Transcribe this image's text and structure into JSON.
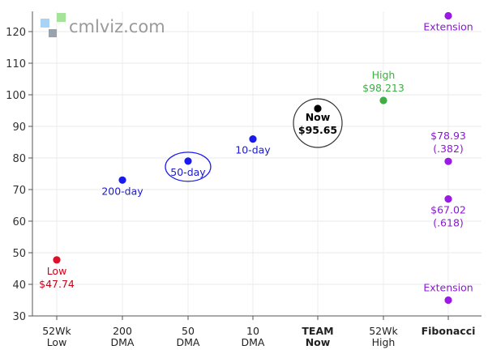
{
  "logo": {
    "text": "cmlviz.com"
  },
  "chart_data": {
    "type": "scatter",
    "ylim": [
      30,
      125
    ],
    "yticks": [
      30,
      40,
      50,
      60,
      70,
      80,
      90,
      100,
      110,
      120
    ],
    "categories": [
      {
        "line1": "52Wk",
        "line2": "Low",
        "bold": false
      },
      {
        "line1": "200",
        "line2": "DMA",
        "bold": false
      },
      {
        "line1": "50",
        "line2": "DMA",
        "bold": false
      },
      {
        "line1": "10",
        "line2": "DMA",
        "bold": false
      },
      {
        "line1": "TEAM",
        "line2": "Now",
        "bold": true
      },
      {
        "line1": "52Wk",
        "line2": "High",
        "bold": false
      },
      {
        "line1": "Fibonacci",
        "line2": "",
        "bold": true
      }
    ],
    "points": [
      {
        "cat": 0,
        "y": 47.74,
        "color": "#e0102a",
        "text_color": "#d0021b",
        "labels": [
          "Low",
          "$47.74"
        ],
        "label_pos": "below"
      },
      {
        "cat": 1,
        "y": 73,
        "color": "#1a1aee",
        "text_color": "#1a1acc",
        "labels": [
          "200-day"
        ],
        "label_pos": "below"
      },
      {
        "cat": 2,
        "y": 79,
        "color": "#1a1aee",
        "text_color": "#1a1acc",
        "labels": [
          "50-day"
        ],
        "label_pos": "below",
        "ring": "#1a1aee"
      },
      {
        "cat": 3,
        "y": 86,
        "color": "#1a1aee",
        "text_color": "#1a1acc",
        "labels": [
          "10-day"
        ],
        "label_pos": "below"
      },
      {
        "cat": 4,
        "y": 95.65,
        "color": "#000000",
        "text_color": "#000000",
        "labels": [
          "Now",
          "$95.65"
        ],
        "label_pos": "below",
        "ring": "#333333",
        "bold": true
      },
      {
        "cat": 5,
        "y": 98.213,
        "color": "#3cb043",
        "text_color": "#3cb043",
        "labels": [
          "High",
          "$98.213"
        ],
        "label_pos": "above"
      },
      {
        "cat": 6,
        "y": 125,
        "color": "#9b19e6",
        "text_color": "#8a1ad0",
        "labels": [
          "Extension"
        ],
        "label_pos": "below"
      },
      {
        "cat": 6,
        "y": 78.93,
        "color": "#9b19e6",
        "text_color": "#8a1ad0",
        "labels": [
          "$78.93",
          "(.382)"
        ],
        "label_pos": "above"
      },
      {
        "cat": 6,
        "y": 67.02,
        "color": "#9b19e6",
        "text_color": "#8a1ad0",
        "labels": [
          "$67.02",
          "(.618)"
        ],
        "label_pos": "below"
      },
      {
        "cat": 6,
        "y": 35,
        "color": "#9b19e6",
        "text_color": "#8a1ad0",
        "labels": [
          "Extension"
        ],
        "label_pos": "above"
      }
    ]
  }
}
